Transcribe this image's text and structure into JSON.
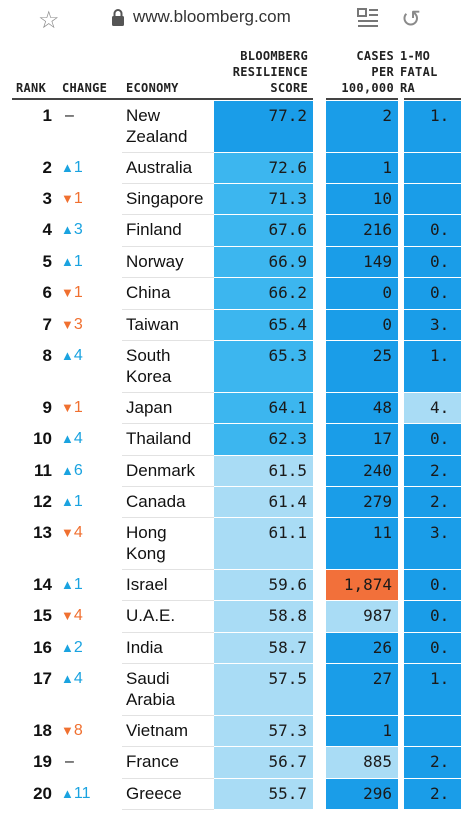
{
  "browser": {
    "url": "www.bloomberg.com",
    "icons": [
      "star-icon",
      "lock-icon",
      "reader-mode-icon",
      "refresh-icon"
    ]
  },
  "table": {
    "headers": {
      "rank": "RANK",
      "change": "CHANGE",
      "economy": "ECONOMY",
      "score": [
        "BLOOMBERG",
        "RESILIENCE",
        "SCORE"
      ],
      "cases": [
        "CASES",
        "PER",
        "100,000"
      ],
      "fatal": [
        "1-MO",
        "FATAL",
        "RA"
      ]
    },
    "colors": {
      "dark_blue": "#1a9de8",
      "mid_blue": "#3cb6ef",
      "light_blue": "#a9dcf5",
      "orange": "#f2703a",
      "up": "#1aa3e0",
      "down": "#f07030"
    },
    "rows": [
      {
        "rank": "1",
        "dir": "none",
        "change": "–",
        "economy": [
          "New",
          "Zealand"
        ],
        "score": "77.2",
        "cases": "2",
        "fatal": "1."
      },
      {
        "rank": "2",
        "dir": "up",
        "change": "1",
        "economy": [
          "Australia"
        ],
        "score": "72.6",
        "cases": "1",
        "fatal": ""
      },
      {
        "rank": "3",
        "dir": "down",
        "change": "1",
        "economy": [
          "Singapore"
        ],
        "score": "71.3",
        "cases": "10",
        "fatal": ""
      },
      {
        "rank": "4",
        "dir": "up",
        "change": "3",
        "economy": [
          "Finland"
        ],
        "score": "67.6",
        "cases": "216",
        "fatal": "0."
      },
      {
        "rank": "5",
        "dir": "up",
        "change": "1",
        "economy": [
          "Norway"
        ],
        "score": "66.9",
        "cases": "149",
        "fatal": "0."
      },
      {
        "rank": "6",
        "dir": "down",
        "change": "1",
        "economy": [
          "China"
        ],
        "score": "66.2",
        "cases": "0",
        "fatal": "0."
      },
      {
        "rank": "7",
        "dir": "down",
        "change": "3",
        "economy": [
          "Taiwan"
        ],
        "score": "65.4",
        "cases": "0",
        "fatal": "3."
      },
      {
        "rank": "8",
        "dir": "up",
        "change": "4",
        "economy": [
          "South",
          "Korea"
        ],
        "score": "65.3",
        "cases": "25",
        "fatal": "1."
      },
      {
        "rank": "9",
        "dir": "down",
        "change": "1",
        "economy": [
          "Japan"
        ],
        "score": "64.1",
        "cases": "48",
        "fatal": "4."
      },
      {
        "rank": "10",
        "dir": "up",
        "change": "4",
        "economy": [
          "Thailand"
        ],
        "score": "62.3",
        "cases": "17",
        "fatal": "0."
      },
      {
        "rank": "11",
        "dir": "up",
        "change": "6",
        "economy": [
          "Denmark"
        ],
        "score": "61.5",
        "cases": "240",
        "fatal": "2."
      },
      {
        "rank": "12",
        "dir": "up",
        "change": "1",
        "economy": [
          "Canada"
        ],
        "score": "61.4",
        "cases": "279",
        "fatal": "2."
      },
      {
        "rank": "13",
        "dir": "down",
        "change": "4",
        "economy": [
          "Hong",
          "Kong"
        ],
        "score": "61.1",
        "cases": "11",
        "fatal": "3."
      },
      {
        "rank": "14",
        "dir": "up",
        "change": "1",
        "economy": [
          "Israel"
        ],
        "score": "59.6",
        "cases": "1,874",
        "fatal": "0."
      },
      {
        "rank": "15",
        "dir": "down",
        "change": "4",
        "economy": [
          "U.A.E."
        ],
        "score": "58.8",
        "cases": "987",
        "fatal": "0."
      },
      {
        "rank": "16",
        "dir": "up",
        "change": "2",
        "economy": [
          "India"
        ],
        "score": "58.7",
        "cases": "26",
        "fatal": "0."
      },
      {
        "rank": "17",
        "dir": "up",
        "change": "4",
        "economy": [
          "Saudi",
          "Arabia"
        ],
        "score": "57.5",
        "cases": "27",
        "fatal": "1."
      },
      {
        "rank": "18",
        "dir": "down",
        "change": "8",
        "economy": [
          "Vietnam"
        ],
        "score": "57.3",
        "cases": "1",
        "fatal": ""
      },
      {
        "rank": "19",
        "dir": "none",
        "change": "–",
        "economy": [
          "France"
        ],
        "score": "56.7",
        "cases": "885",
        "fatal": "2."
      },
      {
        "rank": "20",
        "dir": "up",
        "change": "11",
        "economy": [
          "Greece"
        ],
        "score": "55.7",
        "cases": "296",
        "fatal": "2."
      }
    ]
  }
}
